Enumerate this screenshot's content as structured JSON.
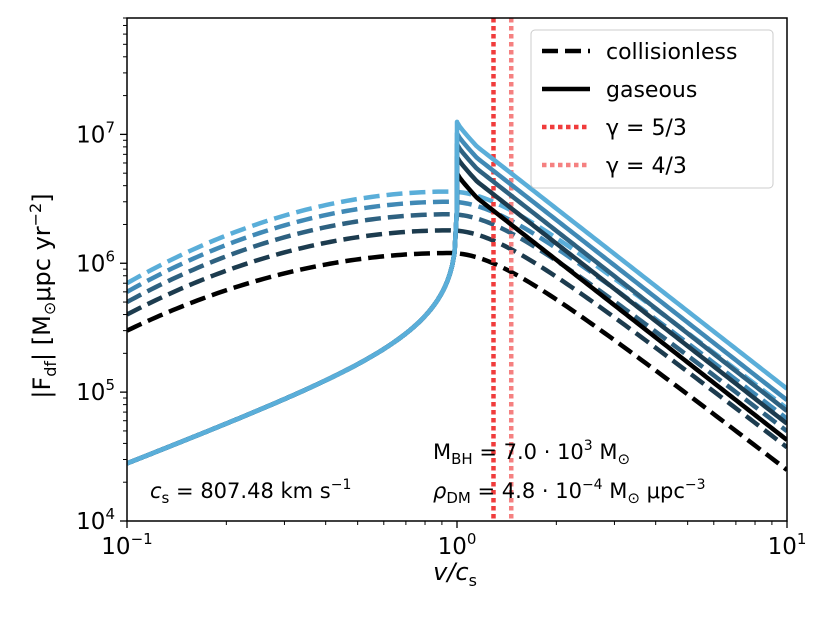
{
  "chart_data": {
    "type": "line",
    "xscale": "log",
    "yscale": "log",
    "xlim": [
      0.1,
      10
    ],
    "ylim": [
      10000,
      80000000
    ],
    "x_ticks": [
      {
        "value": 0.1,
        "base": "10",
        "exp": "−1"
      },
      {
        "value": 1,
        "base": "10",
        "exp": "0"
      },
      {
        "value": 10,
        "base": "10",
        "exp": "1"
      }
    ],
    "y_ticks": [
      {
        "value": 10000,
        "base": "10",
        "exp": "4"
      },
      {
        "value": 100000,
        "base": "10",
        "exp": "5"
      },
      {
        "value": 1000000,
        "base": "10",
        "exp": "6"
      },
      {
        "value": 10000000,
        "base": "10",
        "exp": "7"
      }
    ],
    "xlabel": {
      "main": "v/c",
      "sub": "s"
    },
    "ylabel": {
      "pre": "|F",
      "sub": "df",
      "mid": "| [M",
      "sun": "⊙",
      "mid2": "μpc yr",
      "sup": "−2",
      "post": "]"
    },
    "legend": {
      "placement": "upper right",
      "entries": [
        {
          "label": "collisionless",
          "style": "dashed",
          "color": "#000000"
        },
        {
          "label": "gaseous",
          "style": "solid",
          "color": "#000000"
        },
        {
          "label": "γ = 5/3",
          "style": "dotted",
          "color": "#f03c3c"
        },
        {
          "label": "γ = 4/3",
          "style": "dotted",
          "color": "#f58080"
        }
      ]
    },
    "vlines": [
      {
        "x": 1.29,
        "color": "#f03c3c",
        "style": "dotted"
      },
      {
        "x": 1.46,
        "color": "#f58080",
        "style": "dotted"
      }
    ],
    "collisionless_peaks": [
      1200000,
      1800000,
      2400000,
      3000000,
      3600000
    ],
    "collisionless_x0_values": [
      300000,
      400000,
      500000,
      600000,
      700000
    ],
    "gaseous_peaks": [
      5000000,
      6700000,
      8400000,
      10200000,
      12500000
    ],
    "gaseous_subsonic_value_at_0p1": 28000,
    "series_colors": [
      "#000000",
      "#1c3b4e",
      "#2e6180",
      "#4089b5",
      "#5aaed9"
    ],
    "annotations": {
      "cs": {
        "pre": "c",
        "sub": "s",
        "post": " = 807.48 km s",
        "sup": "−1"
      },
      "mbh": {
        "pre": "M",
        "sub": "BH",
        "post": " = 7.0 · 10",
        "sup": "3",
        "post2": " M",
        "sun": "⊙"
      },
      "rho": {
        "pre": "ρ",
        "sub": "DM",
        "post": " = 4.8 · 10",
        "sup": "−4",
        "post2": " M",
        "sun": "⊙",
        "post3": " μpc",
        "sup2": "−3"
      }
    }
  }
}
